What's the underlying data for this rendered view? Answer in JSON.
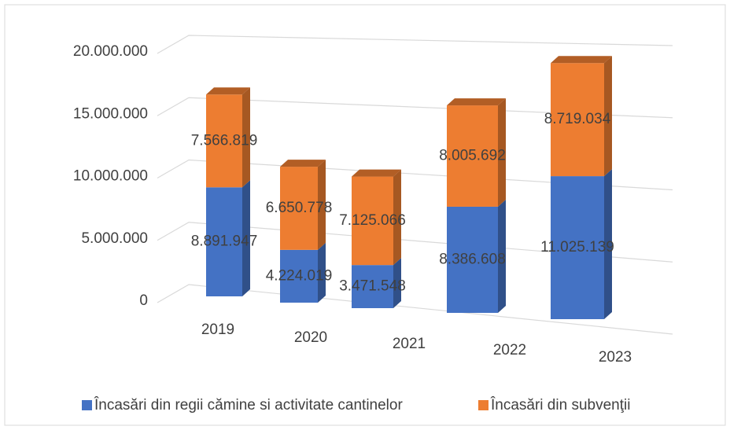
{
  "chart_data": {
    "type": "bar3d_stacked",
    "categories": [
      "2019",
      "2020",
      "2021",
      "2022",
      "2023"
    ],
    "series": [
      {
        "name": "Încasări din regii cămine si activitate cantinelor",
        "color": "#4472c4",
        "values": [
          8891947,
          4224019,
          3471548,
          8386608,
          11025139
        ],
        "value_labels": [
          "8.891.947",
          "4.224.019",
          "3.471.548",
          "8.386.608",
          "11.025.139"
        ]
      },
      {
        "name": "Încasări din subvenţii",
        "color": "#ed7d31",
        "values": [
          7566819,
          6650778,
          7125066,
          8005692,
          8719034
        ],
        "value_labels": [
          "7.566.819",
          "6.650.778",
          "7.125.066",
          "8.005.692",
          "8.719.034"
        ]
      }
    ],
    "ylim": [
      0,
      20000000
    ],
    "yticks": [
      0,
      {
        "value": 5000000,
        "label": "5.000.000"
      },
      {
        "value": 10000000,
        "label": "10.000.000"
      },
      {
        "value": 15000000,
        "label": "15.000.000"
      },
      {
        "value": 20000000,
        "label": "20.000.000"
      }
    ],
    "grid": true,
    "legend": "bottom"
  }
}
